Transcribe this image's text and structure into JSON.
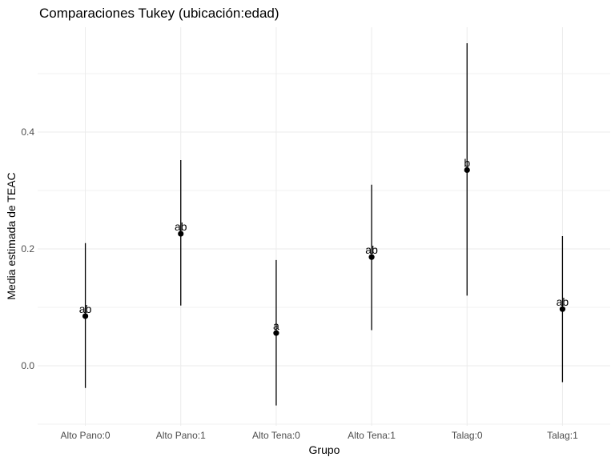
{
  "chart_data": {
    "type": "errorbar",
    "title": "Comparaciones Tukey (ubicación:edad)",
    "xlabel": "Grupo",
    "ylabel": "Media estimada de TEAC",
    "categories": [
      "Alto Pano:0",
      "Alto Pano:1",
      "Alto Tena:0",
      "Alto Tena:1",
      "Talag:0",
      "Talag:1"
    ],
    "means": [
      0.085,
      0.226,
      0.056,
      0.186,
      0.335,
      0.097
    ],
    "lower": [
      -0.038,
      0.103,
      -0.068,
      0.061,
      0.12,
      -0.028
    ],
    "upper": [
      0.21,
      0.352,
      0.181,
      0.31,
      0.552,
      0.222
    ],
    "letters": [
      "ab",
      "ab",
      "a",
      "ab",
      "b",
      "ab"
    ],
    "ylim": [
      -0.1,
      0.6
    ],
    "y_ticks": [
      0.0,
      0.2,
      0.4
    ],
    "y_tick_labels": [
      "0.0",
      "0.2",
      "0.4"
    ],
    "grid": true,
    "color": "#000000"
  }
}
